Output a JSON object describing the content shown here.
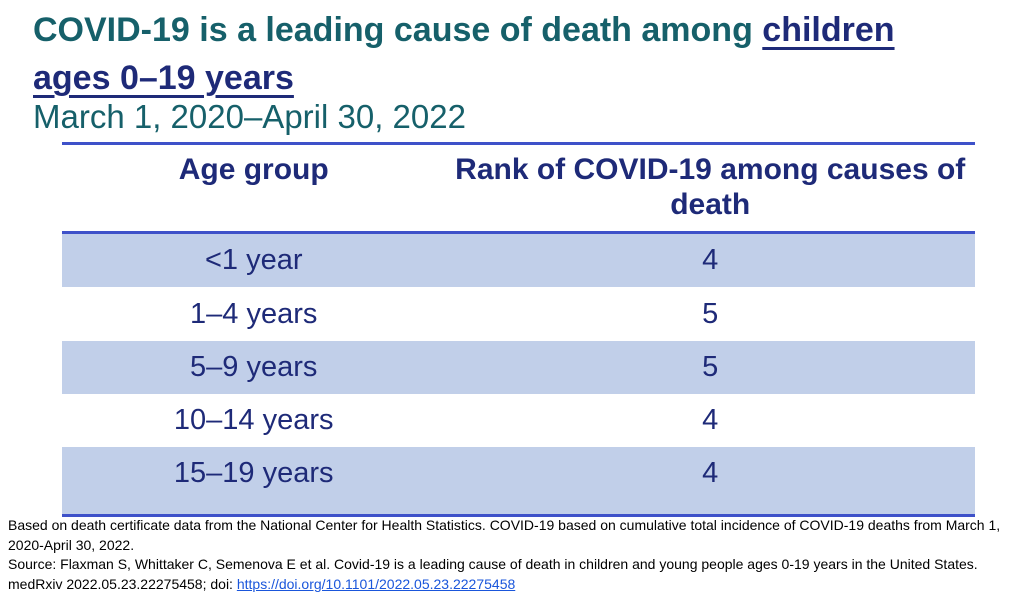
{
  "title": {
    "part1": "COVID-19 is a leading cause of death among ",
    "highlight_line1": "children",
    "highlight_line2": "ages 0–19 years",
    "subtitle": "March 1, 2020–April 30, 2022"
  },
  "table": {
    "headers": {
      "age_group": "Age group",
      "rank": "Rank of COVID-19 among causes of death"
    },
    "rows": [
      {
        "age_group": "<1 year",
        "rank": "4"
      },
      {
        "age_group": "1–4 years",
        "rank": "5"
      },
      {
        "age_group": "5–9 years",
        "rank": "5"
      },
      {
        "age_group": "10–14 years",
        "rank": "4"
      },
      {
        "age_group": "15–19 years",
        "rank": "4"
      }
    ]
  },
  "footer": {
    "note": "Based on death certificate data from the National Center for Health Statistics. COVID-19 based on cumulative total incidence of COVID-19 deaths from March 1, 2020-April 30, 2022.",
    "source_prefix": "Source: Flaxman S, Whittaker C, Semenova E et al. Covid-19 is a leading cause of death in children and young people ages 0-19 years in the United States. medRxiv 2022.05.23.22275458; doi: ",
    "doi_link": "https://doi.org/10.1101/2022.05.23.22275458"
  },
  "colors": {
    "title_teal": "#16606a",
    "navy": "#1e2a78",
    "rule_blue": "#3e51c9",
    "row_shade": "#c1cfe9",
    "link_blue": "#1a56db"
  },
  "chart_data": {
    "type": "table",
    "title": "COVID-19 is a leading cause of death among children ages 0–19 years",
    "subtitle": "March 1, 2020–April 30, 2022",
    "columns": [
      "Age group",
      "Rank of COVID-19 among causes of death"
    ],
    "rows": [
      [
        "<1 year",
        4
      ],
      [
        "1–4 years",
        5
      ],
      [
        "5–9 years",
        5
      ],
      [
        "10–14 years",
        4
      ],
      [
        "15–19 years",
        4
      ]
    ]
  }
}
